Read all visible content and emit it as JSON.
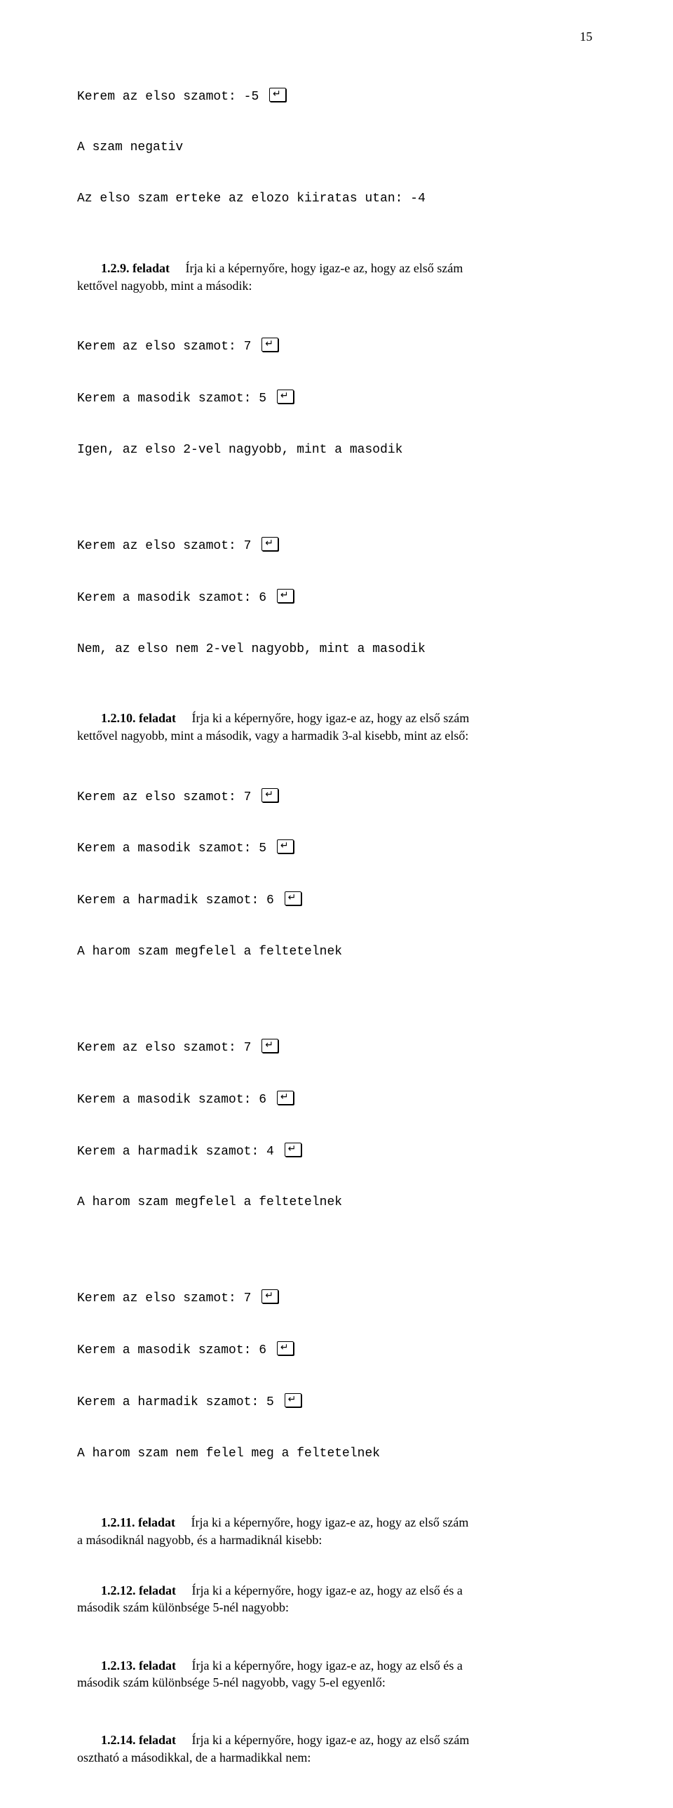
{
  "page_number": "15",
  "pre_block": {
    "l1_a": "Kerem az elso szamot: -5 ",
    "l2": "A szam negativ",
    "l3": "Az elso szam erteke az elozo kiiratas utan: -4"
  },
  "t9": {
    "label": "1.2.9. feladat",
    "text_a": "Írja ki a képernyőre, hogy igaz-e az, hogy az első szám",
    "text_b": "kettővel nagyobb, mint a második:"
  },
  "t9_ex1": {
    "l1": "Kerem az elso szamot: 7 ",
    "l2": "Kerem a masodik szamot: 5 ",
    "l3": "Igen, az elso 2-vel nagyobb, mint a masodik"
  },
  "t9_ex2": {
    "l1": "Kerem az elso szamot: 7 ",
    "l2": "Kerem a masodik szamot: 6 ",
    "l3": "Nem, az elso nem 2-vel nagyobb, mint a masodik"
  },
  "t10": {
    "label": "1.2.10. feladat",
    "text_a": "Írja ki a képernyőre, hogy igaz-e az, hogy az első szám",
    "text_b": "kettővel nagyobb, mint a második, vagy a harmadik 3-al kisebb, mint az első:"
  },
  "t10_ex1": {
    "l1": "Kerem az elso szamot: 7 ",
    "l2": "Kerem a masodik szamot: 5 ",
    "l3": "Kerem a harmadik szamot: 6 ",
    "l4": "A harom szam megfelel a feltetelnek"
  },
  "t10_ex2": {
    "l1": "Kerem az elso szamot: 7 ",
    "l2": "Kerem a masodik szamot: 6 ",
    "l3": "Kerem a harmadik szamot: 4 ",
    "l4": "A harom szam megfelel a feltetelnek"
  },
  "t10_ex3": {
    "l1": "Kerem az elso szamot: 7 ",
    "l2": "Kerem a masodik szamot: 6 ",
    "l3": "Kerem a harmadik szamot: 5 ",
    "l4": "A harom szam nem felel meg a feltetelnek"
  },
  "t11": {
    "label": "1.2.11. feladat",
    "text_a": "Írja ki a képernyőre, hogy igaz-e az, hogy az első szám",
    "text_b": "a másodiknál nagyobb, és a harmadiknál kisebb:"
  },
  "t12": {
    "label": "1.2.12. feladat",
    "text_a": "Írja ki a képernyőre, hogy igaz-e az, hogy az első és a",
    "text_b": "második szám különbsége 5-nél nagyobb:"
  },
  "t13": {
    "label": "1.2.13. feladat",
    "text_a": "Írja ki a képernyőre, hogy igaz-e az, hogy az első és a",
    "text_b": "második szám különbsége 5-nél nagyobb, vagy 5-el egyenlő:"
  },
  "t14": {
    "label": "1.2.14. feladat",
    "text_a": "Írja ki a képernyőre, hogy igaz-e az, hogy az első szám",
    "text_b": "osztható a másodikkal, de a harmadikkal nem:"
  }
}
